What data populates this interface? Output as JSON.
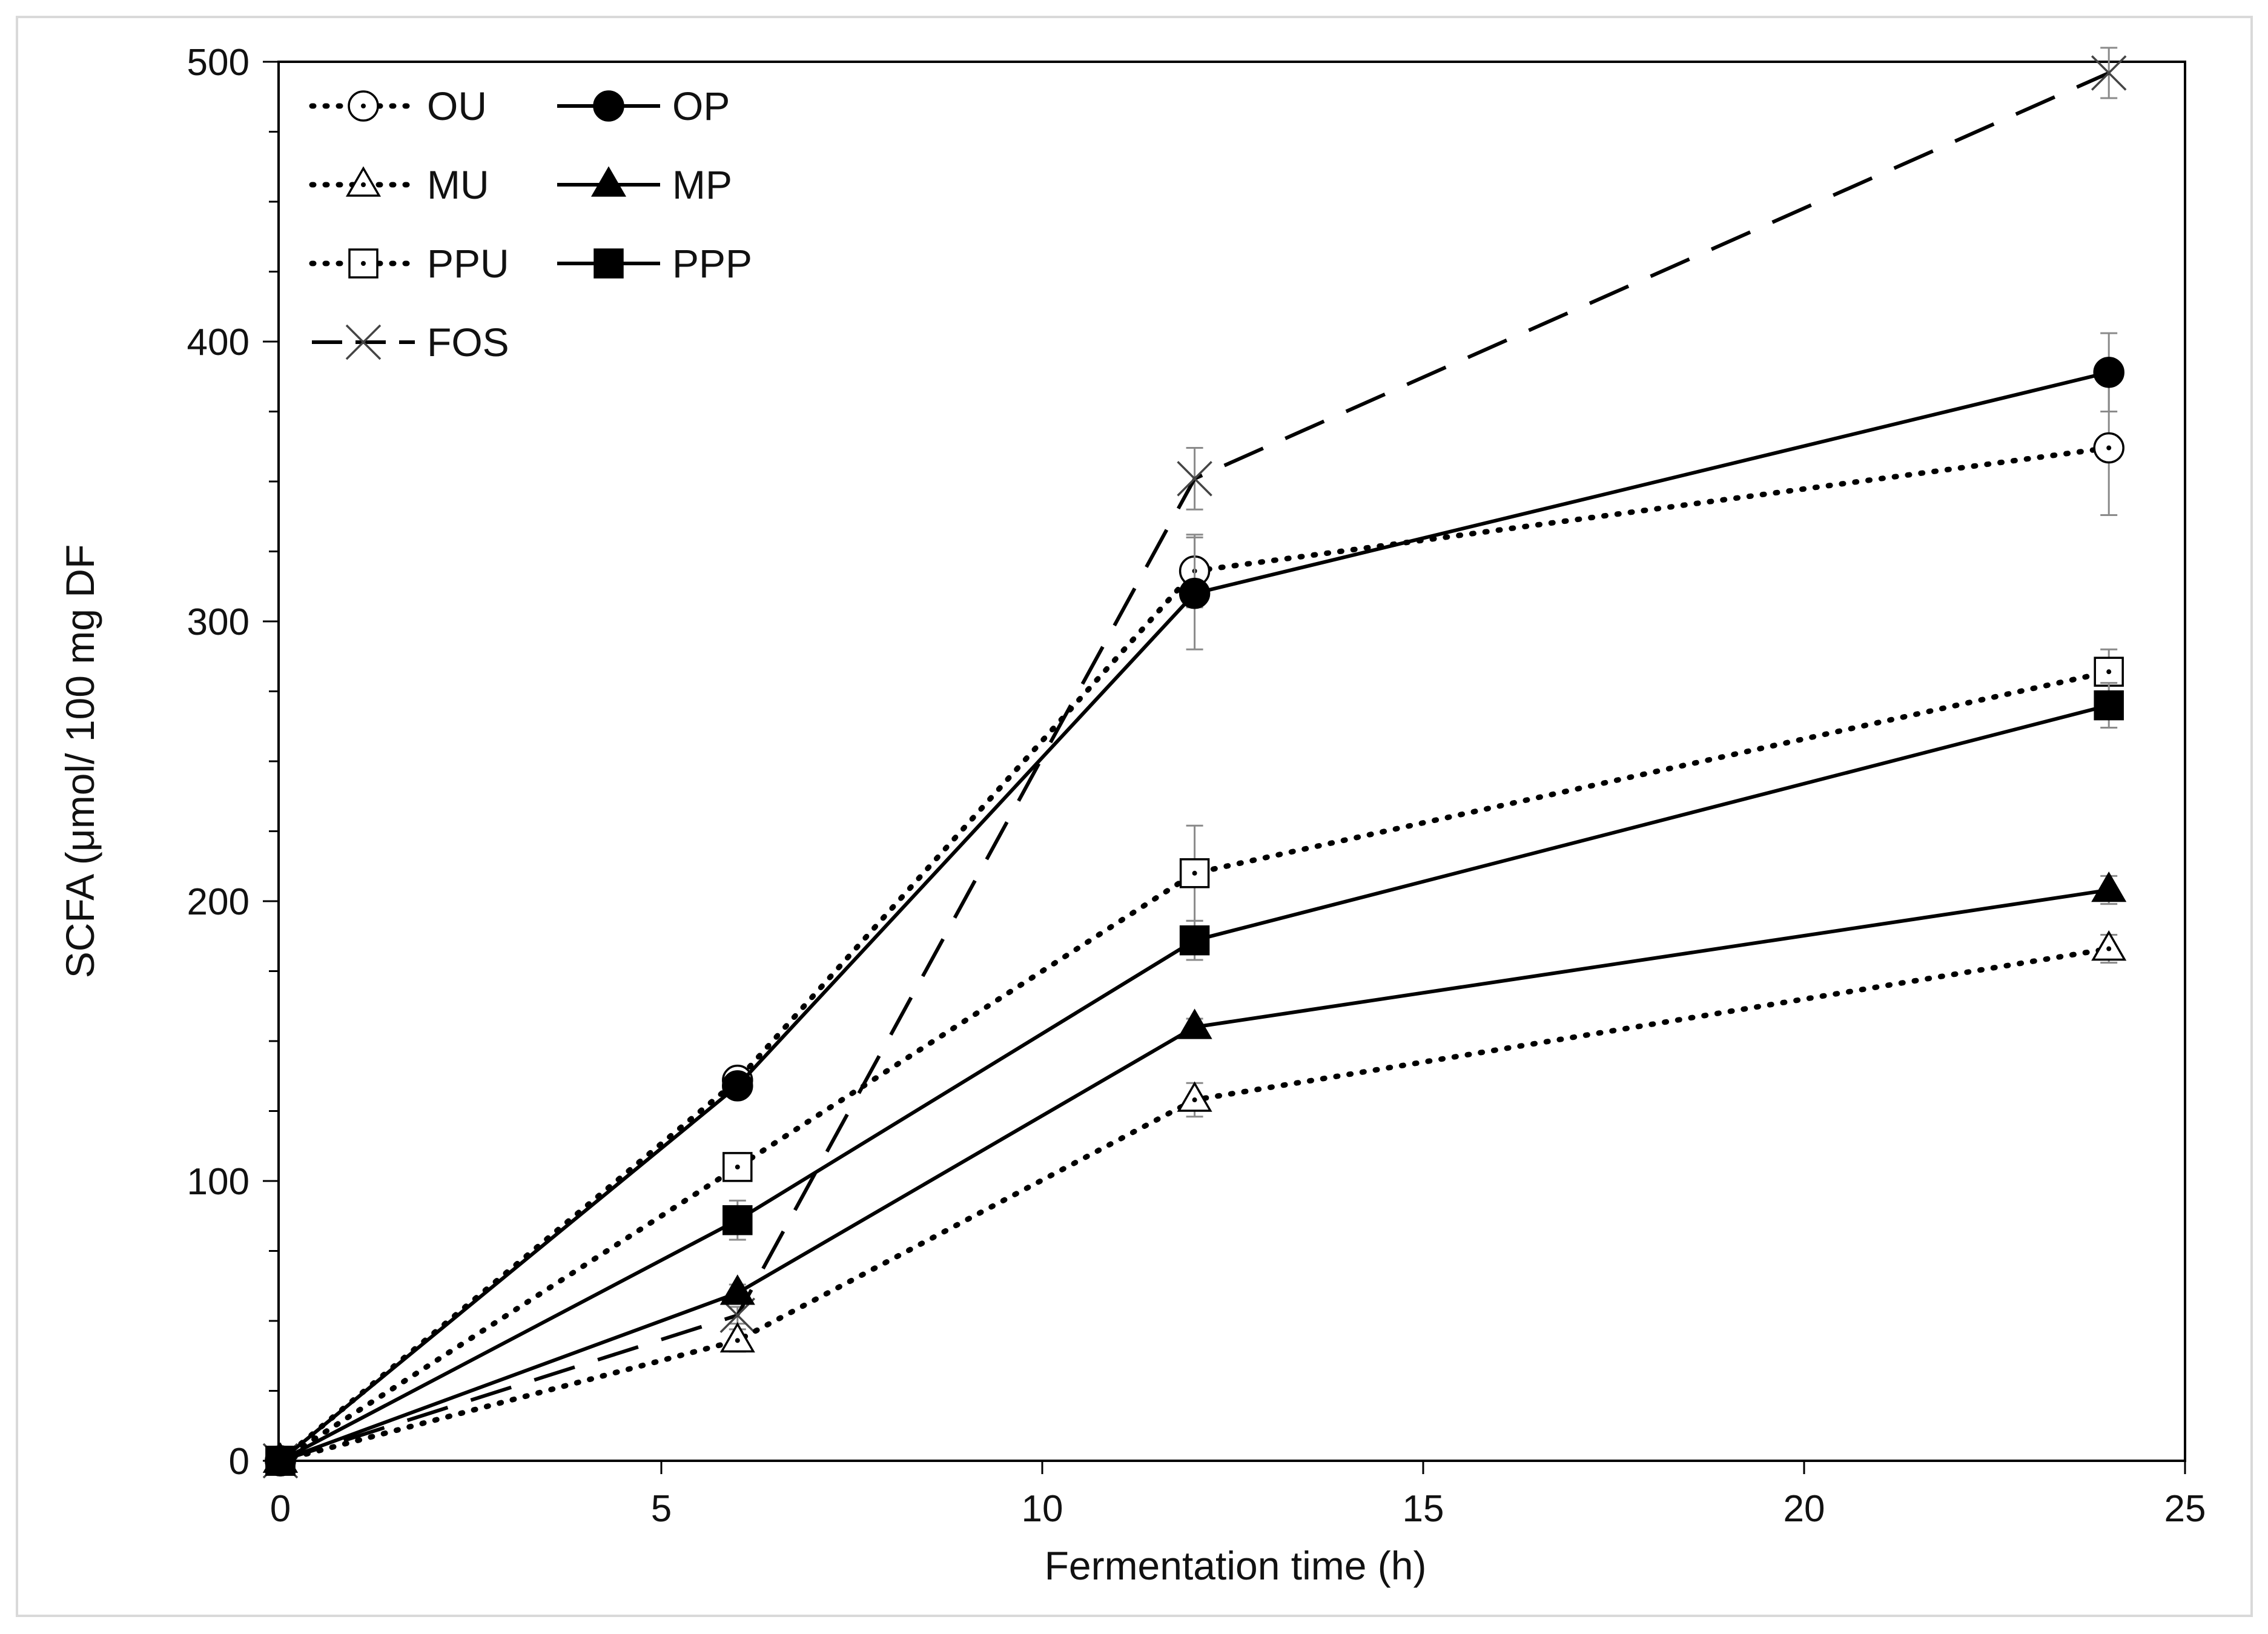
{
  "chart_data": {
    "type": "line",
    "title": "",
    "xlabel": "Fermentation time (h)",
    "ylabel": "SCFA (μmol/ 100 mg DF",
    "xlim": [
      0,
      25
    ],
    "ylim": [
      0,
      500
    ],
    "xticks": [
      0,
      5,
      10,
      15,
      20,
      25
    ],
    "yticks": [
      0,
      100,
      200,
      300,
      400,
      500
    ],
    "x": [
      0,
      6,
      12,
      24
    ],
    "legend_position": "top-left",
    "series": [
      {
        "name": "OU",
        "values": [
          0,
          136,
          318,
          362
        ],
        "errors": [
          0,
          3,
          13,
          24
        ],
        "line": "dotted",
        "marker": "circle-open"
      },
      {
        "name": "OP",
        "values": [
          0,
          134,
          310,
          389
        ],
        "errors": [
          0,
          3,
          20,
          14
        ],
        "line": "solid",
        "marker": "circle-filled"
      },
      {
        "name": "MU",
        "values": [
          0,
          43,
          129,
          183
        ],
        "errors": [
          0,
          4,
          6,
          5
        ],
        "line": "dotted",
        "marker": "triangle-open"
      },
      {
        "name": "MP",
        "values": [
          0,
          60,
          155,
          204
        ],
        "errors": [
          0,
          3,
          3,
          5
        ],
        "line": "solid",
        "marker": "triangle-filled"
      },
      {
        "name": "PPU",
        "values": [
          0,
          105,
          210,
          282
        ],
        "errors": [
          0,
          5,
          17,
          8
        ],
        "line": "dotted",
        "marker": "square-open"
      },
      {
        "name": "PPP",
        "values": [
          0,
          86,
          186,
          270
        ],
        "errors": [
          0,
          7,
          7,
          8
        ],
        "line": "solid",
        "marker": "square-filled"
      },
      {
        "name": "FOS",
        "values": [
          0,
          52,
          351,
          496
        ],
        "errors": [
          0,
          3,
          11,
          9
        ],
        "line": "dashed",
        "marker": "x"
      }
    ]
  }
}
